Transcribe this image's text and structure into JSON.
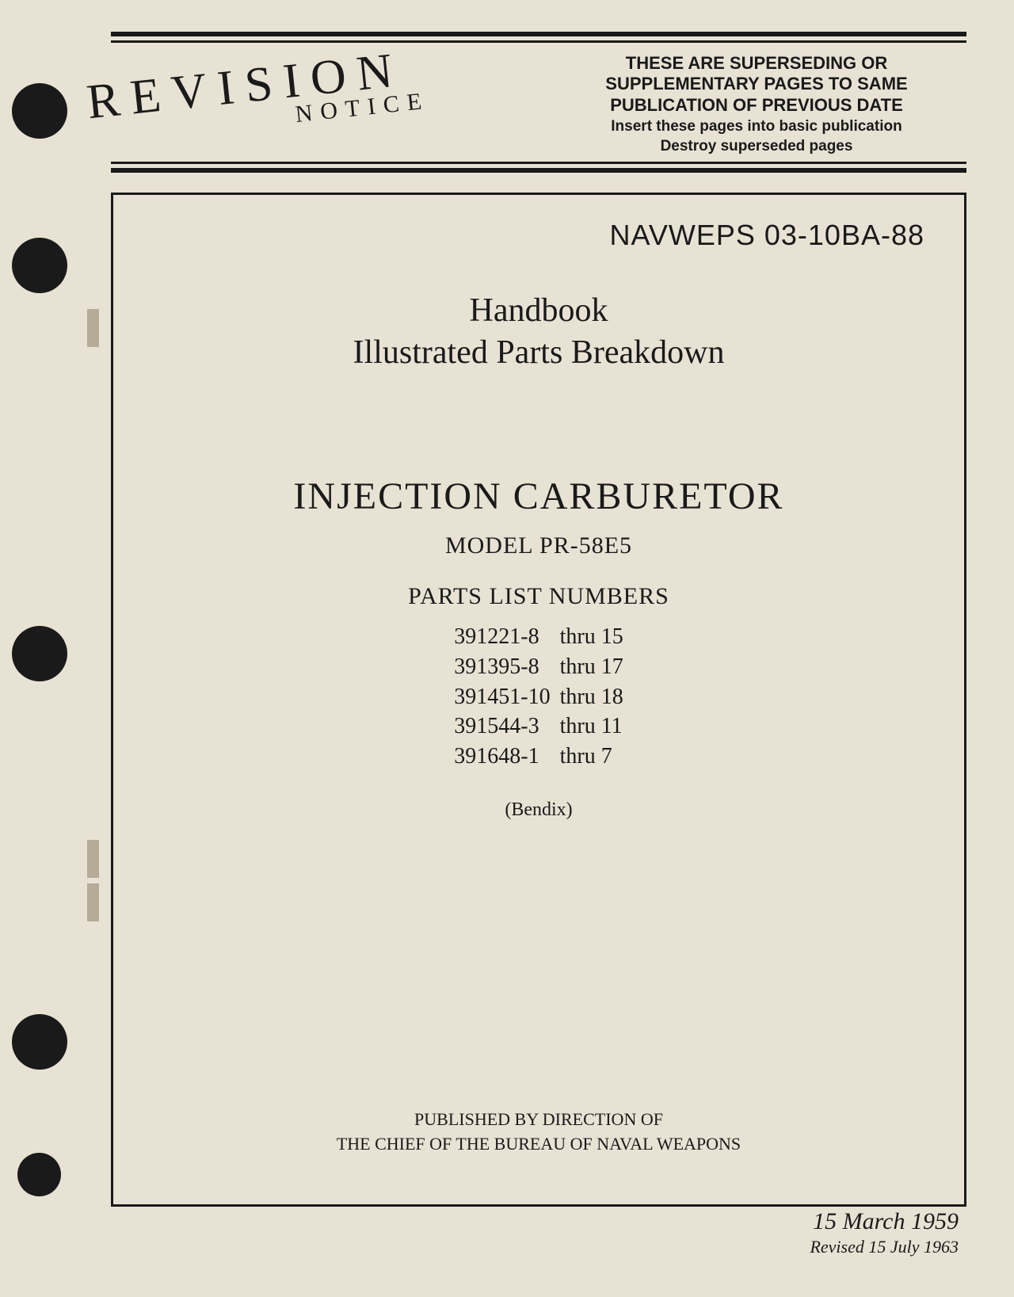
{
  "header": {
    "revision": "REVISION",
    "notice": "NOTICE",
    "superseding_line1": "THESE ARE SUPERSEDING OR SUPPLEMENTARY PAGES TO SAME PUBLICATION OF PREVIOUS DATE",
    "superseding_line2a": "Insert these pages into basic publication",
    "superseding_line2b": "Destroy superseded pages"
  },
  "document": {
    "doc_number": "NAVWEPS 03-10BA-88",
    "handbook": "Handbook",
    "illustrated": "Illustrated Parts Breakdown",
    "main_title": "INJECTION CARBURETOR",
    "model": "MODEL PR-58E5",
    "parts_list_heading": "PARTS LIST NUMBERS",
    "parts_list": [
      {
        "num": "391221-8",
        "range": "thru 15"
      },
      {
        "num": "391395-8",
        "range": "thru 17"
      },
      {
        "num": "391451-10",
        "range": "thru 18"
      },
      {
        "num": "391544-3",
        "range": "thru 11"
      },
      {
        "num": "391648-1",
        "range": "thru 7"
      }
    ],
    "manufacturer": "(Bendix)",
    "published_line1": "PUBLISHED BY DIRECTION OF",
    "published_line2": "THE CHIEF OF THE BUREAU OF NAVAL WEAPONS"
  },
  "dates": {
    "primary": "15 March 1959",
    "revised": "Revised 15 July 1963"
  },
  "styling": {
    "page_bg": "#e8e2d4",
    "text_color": "#1a1a1a",
    "rule_color": "#1a1a1a",
    "frame_border_width": 3,
    "top_rule_thick": 6,
    "top_rule_thin": 3
  }
}
